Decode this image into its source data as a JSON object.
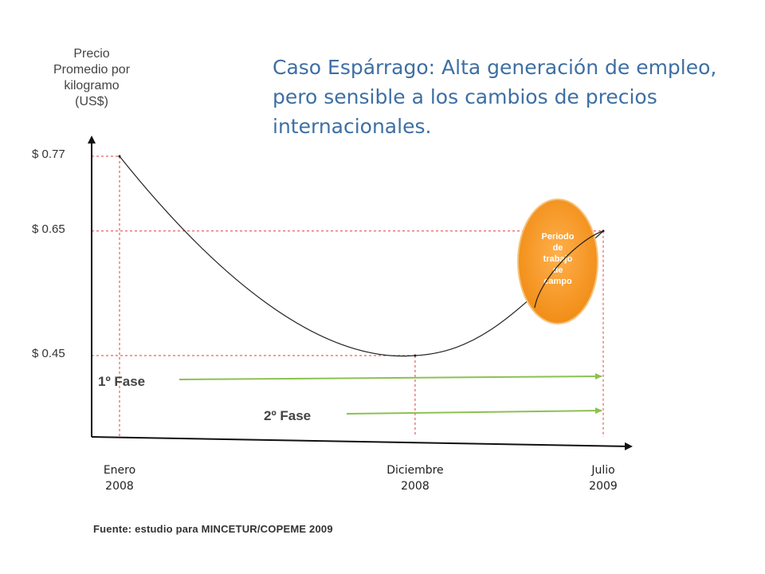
{
  "slide": {
    "title": "Caso Espárrago: Alta generación de empleo, pero sensible a los cambios de precios internacionales.",
    "source": "Fuente: estudio para MINCETUR/COPEME 2009"
  },
  "chart_data": {
    "type": "line",
    "ylabel": "Precio Promedio por kilogramo (US$)",
    "ylabel_lines": [
      "Precio",
      "Promedio por",
      "kilogramo",
      "(US$)"
    ],
    "xlabel": "",
    "x_ticks": [
      {
        "label": [
          "Enero",
          "2008"
        ],
        "date": "2008-01"
      },
      {
        "label": [
          "Diciembre",
          "2008"
        ],
        "date": "2008-12"
      },
      {
        "label": [
          "Julio",
          "2009"
        ],
        "date": "2009-07"
      }
    ],
    "y_ticks": [
      {
        "label": "$ 0.77",
        "value": 0.77
      },
      {
        "label": "$ 0.65",
        "value": 0.65
      },
      {
        "label": "$ 0.45",
        "value": 0.45
      }
    ],
    "series": [
      {
        "points": [
          {
            "x": "2008-01",
            "y": 0.77
          },
          {
            "x": "2008-12",
            "y": 0.45
          },
          {
            "x": "2009-07",
            "y": 0.65
          }
        ],
        "color": "#222222"
      }
    ],
    "phases": [
      {
        "label": "1º Fase",
        "start": "2008-01",
        "end": "2009-07",
        "color": "#8cc152"
      },
      {
        "label": "2º Fase",
        "start": "2008-12",
        "end": "2009-07",
        "color": "#8cc152"
      }
    ],
    "annotation": {
      "text": [
        "Periodo",
        "de",
        "trabajo",
        "de",
        "campo"
      ],
      "at": "2009-07",
      "color": "#f7941d"
    },
    "reference_line_color": "#e03c3c",
    "grid": false
  }
}
